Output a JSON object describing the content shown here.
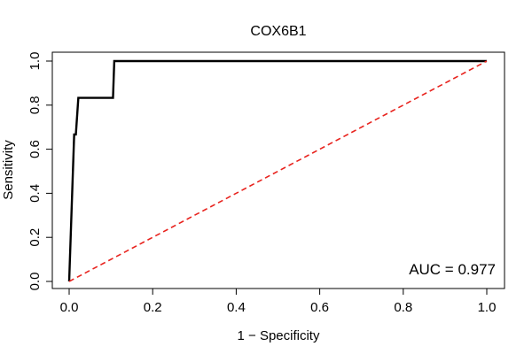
{
  "chart_data": {
    "type": "line",
    "title": "COX6B1",
    "xlabel": "1 − Specificity",
    "ylabel": "Sensitivity",
    "xlim": [
      0,
      1
    ],
    "ylim": [
      0,
      1
    ],
    "x_ticks": [
      0.0,
      0.2,
      0.4,
      0.6,
      0.8,
      1.0
    ],
    "y_ticks": [
      0.0,
      0.2,
      0.4,
      0.6,
      0.8,
      1.0
    ],
    "x_tick_labels": [
      "0.0",
      "0.2",
      "0.4",
      "0.6",
      "0.8",
      "1.0"
    ],
    "y_tick_labels": [
      "0.0",
      "0.2",
      "0.4",
      "0.6",
      "0.8",
      "1.0"
    ],
    "grid": false,
    "series": [
      {
        "style": "solid",
        "color": "#000000",
        "points": [
          [
            0.0,
            0.0
          ],
          [
            0.012,
            0.667
          ],
          [
            0.016,
            0.667
          ],
          [
            0.022,
            0.833
          ],
          [
            0.105,
            0.833
          ],
          [
            0.108,
            1.0
          ],
          [
            1.0,
            1.0
          ]
        ]
      },
      {
        "style": "dashed",
        "color": "#e8231e",
        "points": [
          [
            0.0,
            0.0
          ],
          [
            1.0,
            1.0
          ]
        ]
      }
    ],
    "annotation": "AUC = 0.977"
  }
}
